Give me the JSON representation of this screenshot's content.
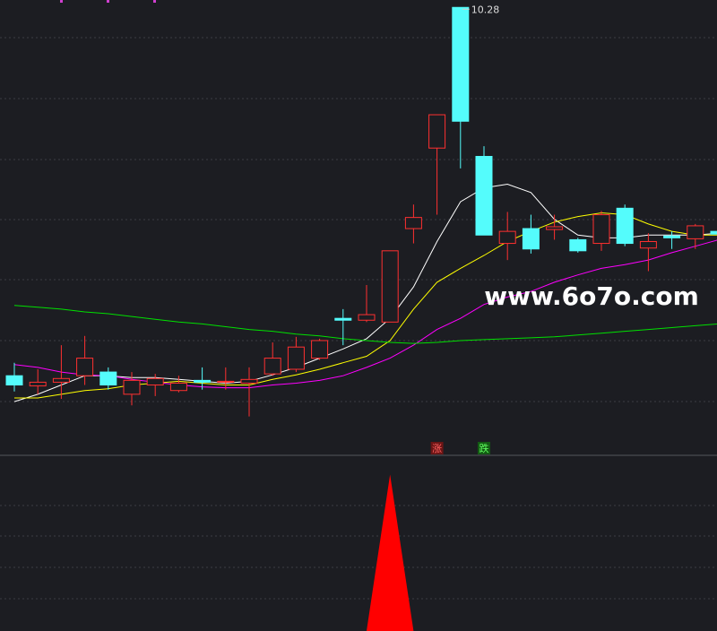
{
  "chart_data": {
    "type": "candlestick",
    "ylim": [
      5.44,
      10.36
    ],
    "open": [
      6.3,
      6.19,
      6.23,
      6.3,
      6.34,
      6.1,
      6.2,
      6.14,
      6.25,
      6.24,
      6.22,
      6.32,
      6.37,
      6.49,
      6.92,
      6.9,
      6.88,
      7.89,
      8.76,
      10.28,
      8.67,
      7.73,
      7.89,
      7.88,
      7.77,
      7.73,
      8.11,
      7.68,
      7.81,
      7.78,
      7.86
    ],
    "high": [
      6.44,
      6.37,
      6.63,
      6.73,
      6.39,
      6.34,
      6.32,
      6.3,
      6.39,
      6.39,
      6.39,
      6.66,
      6.72,
      6.7,
      7.02,
      7.28,
      7.65,
      8.15,
      9.12,
      10.28,
      8.78,
      8.07,
      8.04,
      8.04,
      7.79,
      8.08,
      8.15,
      7.84,
      7.86,
      7.94,
      8.02
    ],
    "low": [
      6.13,
      6.1,
      6.05,
      6.2,
      6.15,
      5.98,
      6.08,
      6.12,
      6.15,
      6.15,
      5.86,
      6.3,
      6.34,
      6.47,
      6.63,
      6.88,
      6.88,
      7.73,
      8.04,
      8.54,
      7.82,
      7.55,
      7.62,
      7.77,
      7.63,
      7.65,
      7.7,
      7.43,
      7.67,
      7.67,
      7.75
    ],
    "close": [
      6.2,
      6.23,
      6.27,
      6.49,
      6.2,
      6.25,
      6.27,
      6.22,
      6.23,
      6.24,
      6.26,
      6.49,
      6.61,
      6.68,
      6.9,
      6.96,
      7.65,
      8.01,
      9.12,
      9.05,
      7.82,
      7.86,
      7.67,
      7.91,
      7.65,
      8.04,
      7.73,
      7.75,
      7.79,
      7.92,
      7.83
    ],
    "up_color": "#ff3030",
    "down_color": "#54fcfc",
    "signals": [
      null,
      null,
      null,
      null,
      null,
      null,
      null,
      null,
      null,
      null,
      null,
      null,
      null,
      null,
      null,
      null,
      null,
      null,
      "涨",
      null,
      "跌",
      null,
      null,
      null,
      null,
      null,
      null,
      null,
      null,
      null,
      null
    ],
    "series": [
      {
        "color": "#ffffff",
        "values": [
          6.02,
          6.1,
          6.2,
          6.3,
          6.3,
          6.28,
          6.28,
          6.26,
          6.24,
          6.22,
          6.24,
          6.31,
          6.39,
          6.49,
          6.59,
          6.7,
          6.92,
          7.26,
          7.75,
          8.18,
          8.33,
          8.37,
          8.28,
          7.99,
          7.82,
          7.79,
          7.79,
          7.82,
          7.82,
          7.82,
          7.84
        ]
      },
      {
        "color": "#ffff00",
        "values": [
          6.06,
          6.06,
          6.1,
          6.14,
          6.16,
          6.2,
          6.22,
          6.24,
          6.22,
          6.2,
          6.2,
          6.26,
          6.31,
          6.37,
          6.44,
          6.51,
          6.68,
          7.02,
          7.31,
          7.46,
          7.6,
          7.75,
          7.86,
          7.96,
          8.02,
          8.06,
          8.04,
          7.94,
          7.86,
          7.82,
          7.82
        ]
      },
      {
        "color": "#ff00ff",
        "values": [
          6.42,
          6.39,
          6.34,
          6.31,
          6.3,
          6.26,
          6.23,
          6.2,
          6.18,
          6.17,
          6.17,
          6.2,
          6.22,
          6.25,
          6.3,
          6.39,
          6.49,
          6.63,
          6.8,
          6.92,
          7.07,
          7.15,
          7.21,
          7.31,
          7.39,
          7.46,
          7.5,
          7.55,
          7.63,
          7.7,
          7.77
        ]
      },
      {
        "color": "#00e000",
        "values": [
          7.06,
          7.04,
          7.02,
          6.99,
          6.97,
          6.94,
          6.91,
          6.88,
          6.86,
          6.83,
          6.8,
          6.78,
          6.75,
          6.73,
          6.7,
          6.68,
          6.66,
          6.65,
          6.66,
          6.68,
          6.69,
          6.7,
          6.71,
          6.72,
          6.74,
          6.76,
          6.78,
          6.8,
          6.82,
          6.84,
          6.86
        ]
      }
    ],
    "indicator": {
      "type": "area",
      "color": "#ff0000",
      "ylim": [
        0,
        1.1
      ],
      "values": [
        0,
        0,
        0,
        0,
        0,
        0,
        0,
        0,
        0,
        0,
        0,
        0,
        0,
        0,
        0,
        0,
        1,
        0,
        0,
        0,
        0,
        0,
        0,
        0,
        0,
        0,
        0,
        0,
        0,
        0,
        0
      ]
    },
    "watermark": "www.6o7o.com"
  }
}
